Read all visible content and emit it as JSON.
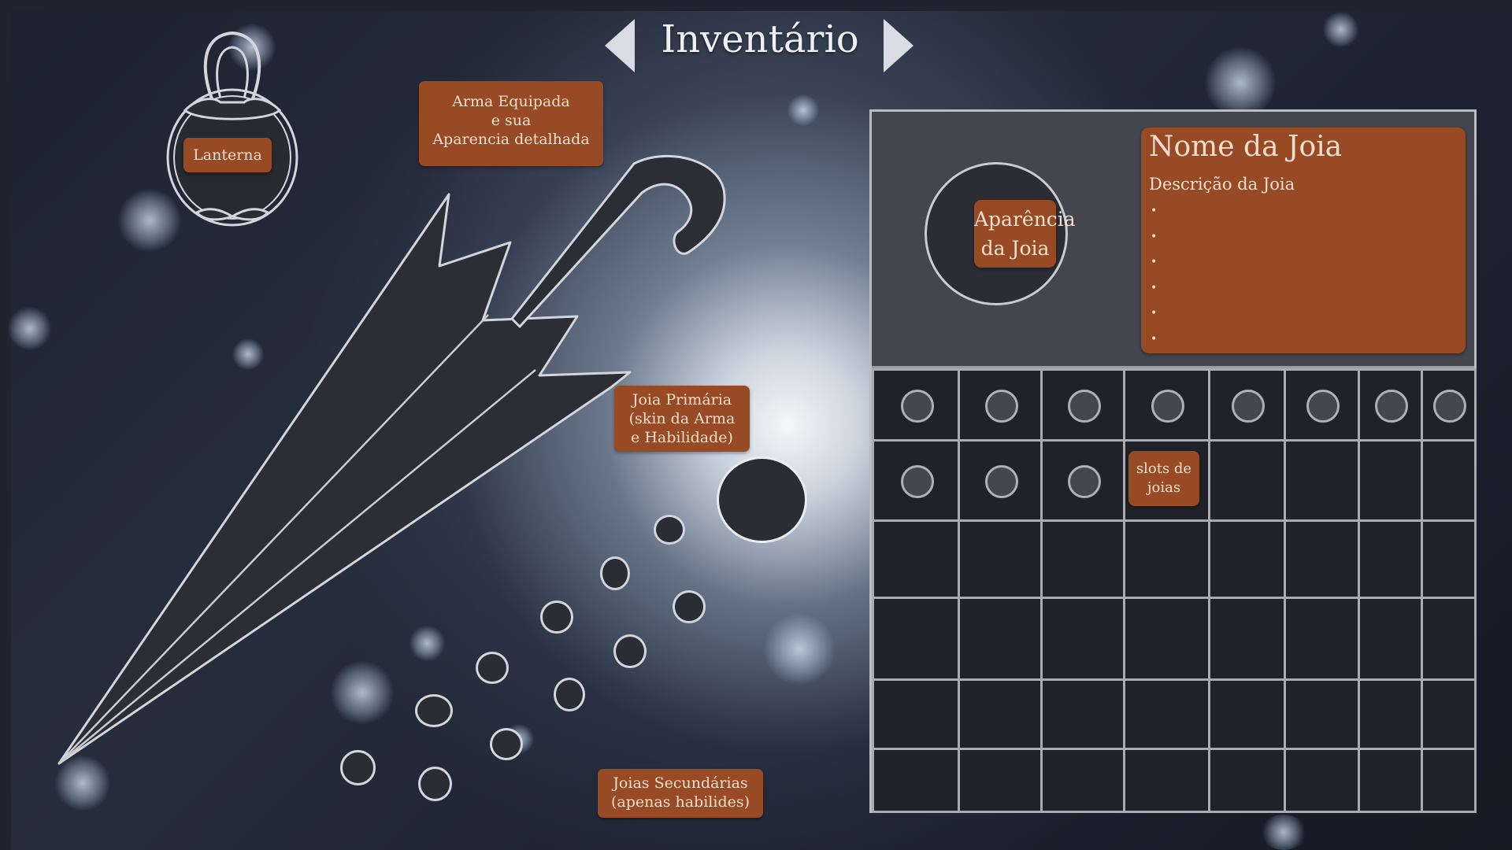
{
  "title": "Inventário",
  "lantern": {
    "label": "Lanterna"
  },
  "weapon": {
    "label_lines": [
      "Arma Equipada",
      "e sua",
      "Aparencia detalhada"
    ]
  },
  "primary_jewel": {
    "label_lines": [
      "Joia Primária",
      "(skin da Arma",
      "e Habilidade)"
    ]
  },
  "secondary_jewels": {
    "label_lines": [
      "Joias Secundárias",
      "(apenas habilides)"
    ]
  },
  "jewel_detail": {
    "appearance_lines": [
      "Aparência",
      "da Joia"
    ],
    "name": "Nome da Joia",
    "description": "Descrição da Joia",
    "bullets": [
      "•",
      "•",
      "•",
      "•",
      "•",
      "•"
    ]
  },
  "grid": {
    "columns": 8,
    "rows": 6,
    "filled_slots_row1": 8,
    "filled_slots_row2": 3,
    "slots_label_lines": [
      "slots de",
      "joias"
    ]
  },
  "colors": {
    "label_bg": "#974a23",
    "label_text": "#f2dfcf",
    "panel_border": "#b9bcc2",
    "outline": "#d3d6dc",
    "dark_fill": "#2a2d33"
  },
  "icons": [
    "arrow-left-icon",
    "arrow-right-icon",
    "lantern-icon",
    "umbrella-weapon-icon"
  ]
}
